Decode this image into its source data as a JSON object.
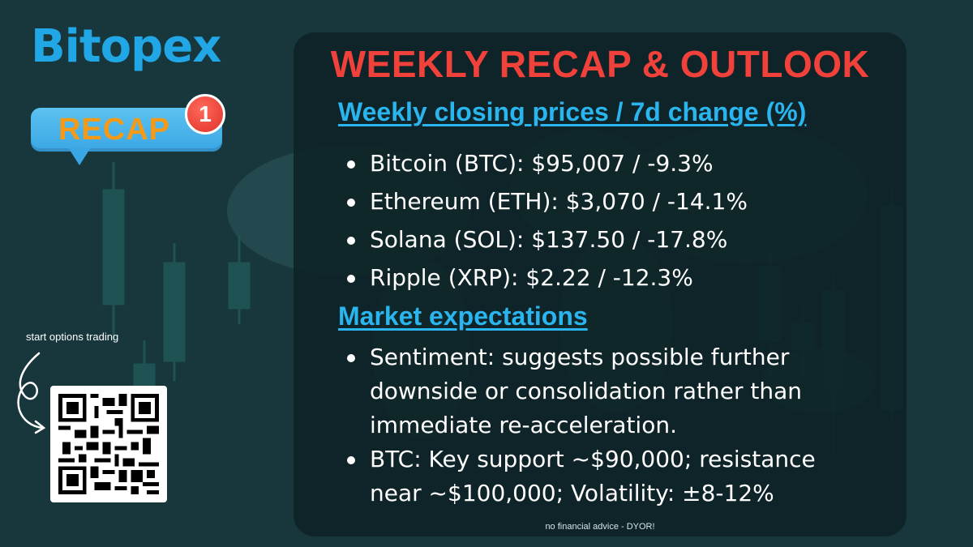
{
  "brand": {
    "name": "Bitopex"
  },
  "badge": {
    "label": "RECAP",
    "count": "1"
  },
  "qr": {
    "caption": "start options trading"
  },
  "panel": {
    "title": "WEEKLY RECAP & OUTLOOK",
    "prices_heading": "Weekly closing prices / 7d change (%)",
    "prices": [
      "Bitcoin (BTC): $95,007 / -9.3%",
      "Ethereum (ETH): $3,070 / -14.1%",
      "Solana (SOL): $137.50 / -17.8%",
      "Ripple (XRP): $2.22 / -12.3%"
    ],
    "expectations_heading": "Market expectations",
    "expectations": [
      "Sentiment: suggests possible further downside or consolidation rather than immediate re-acceleration.",
      "BTC: Key support ~$90,000; resistance near ~$100,000; Volatility: ±8-12%"
    ],
    "disclaimer": "no financial advice - DYOR!"
  },
  "colors": {
    "background": "#17373d",
    "title": "#f0413a",
    "heading": "#2ab5ee",
    "brand": "#21a7e6",
    "badge_text": "#f59a16",
    "badge_bg": "#3aa6e4",
    "notif": "#e0302a"
  },
  "icons": [
    "candlestick-chart-background",
    "world-map-background",
    "hand-drawn-arrow-icon",
    "qr-code"
  ]
}
